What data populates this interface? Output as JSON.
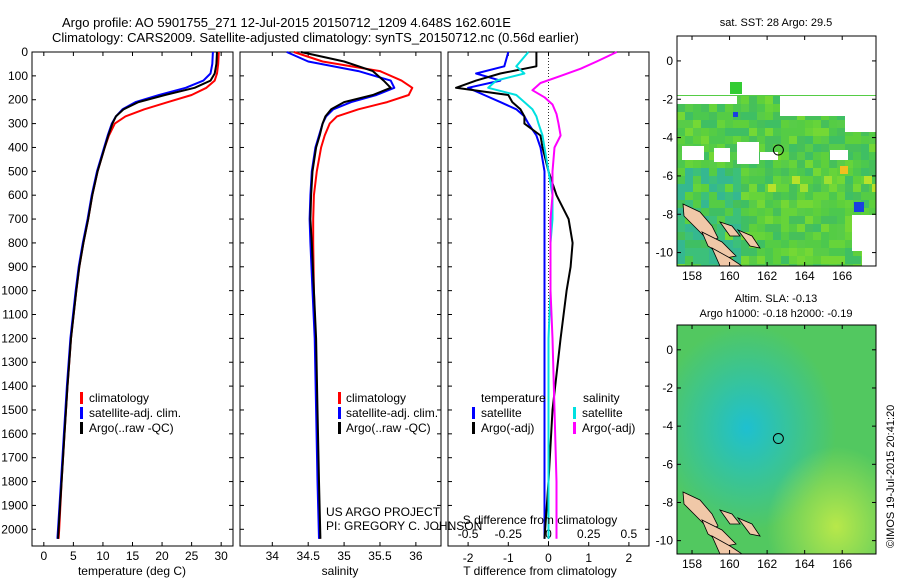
{
  "header": {
    "line1": "Argo profile: AO 5901755_271 12-Jul-2015 20150712_1209 4.648S 162.601E",
    "line2": "Climatology: CARS2009. Satellite-adjusted climatology: synTS_20150712.nc (0.56d earlier)"
  },
  "credit": {
    "line1": "US ARGO PROJECT",
    "line2": "PI: GREGORY C. JOHNSON"
  },
  "timestamp": "©IMOS 19-Jul-2015 20:41:20",
  "chart_data": [
    {
      "id": "temperature",
      "type": "line",
      "xlabel": "temperature (deg C)",
      "ylabel": "",
      "xlim": [
        -2,
        32
      ],
      "ylim": [
        2070,
        0
      ],
      "xticks": [
        0,
        5,
        10,
        15,
        20,
        25,
        30
      ],
      "yticks": [
        0,
        100,
        200,
        300,
        400,
        500,
        600,
        700,
        800,
        900,
        1000,
        1100,
        1200,
        1300,
        1400,
        1500,
        1600,
        1700,
        1800,
        1900,
        2000
      ],
      "legend": [
        "climatology",
        "satellite-adj. clim.",
        "Argo(..raw -QC)"
      ],
      "legend_position": "lower-center",
      "series": [
        {
          "name": "climatology",
          "color": "#ff0000",
          "depth": [
            0,
            50,
            90,
            120,
            150,
            180,
            210,
            240,
            270,
            300,
            350,
            400,
            500,
            600,
            700,
            800,
            900,
            1000,
            1200,
            1400,
            1600,
            1800,
            2000,
            2040
          ],
          "values": [
            29.6,
            29.5,
            29.3,
            28.9,
            27.5,
            25.0,
            21.0,
            17.0,
            13.8,
            12.0,
            11.0,
            10.3,
            9.1,
            8.2,
            7.5,
            6.7,
            6.0,
            5.5,
            4.6,
            4.0,
            3.5,
            3.0,
            2.6,
            2.5
          ]
        },
        {
          "name": "satellite-adj. clim.",
          "color": "#0000ff",
          "depth": [
            0,
            50,
            90,
            120,
            150,
            180,
            210,
            240,
            270,
            300,
            350,
            400,
            500,
            600,
            700,
            800,
            900,
            1000,
            1200,
            1400,
            1600,
            1800,
            2000,
            2040
          ],
          "values": [
            28.6,
            28.5,
            28.2,
            27.0,
            24.0,
            19.5,
            15.5,
            13.3,
            12.2,
            11.5,
            10.8,
            10.2,
            9.0,
            8.1,
            7.4,
            6.6,
            5.9,
            5.4,
            4.5,
            3.9,
            3.4,
            2.9,
            2.4,
            2.3
          ]
        },
        {
          "name": "Argo(..raw -QC)",
          "color": "#000000",
          "depth": [
            0,
            50,
            90,
            120,
            150,
            180,
            210,
            240,
            270,
            300,
            350,
            400,
            500,
            600,
            700,
            800,
            900,
            1000,
            1200,
            1400,
            1600,
            1800,
            2000,
            2040
          ],
          "values": [
            29.3,
            29.2,
            28.9,
            28.2,
            25.5,
            20.5,
            16.0,
            13.5,
            12.2,
            11.6,
            10.9,
            10.3,
            9.1,
            8.2,
            7.5,
            6.7,
            6.0,
            5.5,
            4.6,
            4.0,
            3.5,
            3.0,
            2.5,
            2.4
          ]
        }
      ]
    },
    {
      "id": "salinity",
      "type": "line",
      "xlabel": "salinity",
      "ylabel": "",
      "xlim": [
        33.55,
        36.35
      ],
      "ylim": [
        2070,
        0
      ],
      "xticks": [
        34,
        34.5,
        35,
        35.5,
        36
      ],
      "legend": [
        "climatology",
        "satellite-adj. clim.",
        "Argo(..raw -QC)"
      ],
      "legend_position": "lower-center",
      "series": [
        {
          "name": "climatology",
          "color": "#ff0000",
          "depth": [
            0,
            40,
            80,
            120,
            150,
            180,
            210,
            240,
            270,
            300,
            350,
            400,
            500,
            600,
            700,
            800,
            1000,
            1200,
            1500,
            1800,
            2040
          ],
          "values": [
            34.3,
            34.7,
            35.5,
            35.8,
            35.95,
            35.9,
            35.6,
            35.2,
            34.9,
            34.8,
            34.73,
            34.68,
            34.62,
            34.58,
            34.57,
            34.57,
            34.58,
            34.6,
            34.62,
            34.64,
            34.66
          ]
        },
        {
          "name": "satellite-adj. clim.",
          "color": "#0000ff",
          "depth": [
            0,
            40,
            80,
            120,
            150,
            180,
            210,
            240,
            270,
            300,
            350,
            400,
            500,
            600,
            700,
            800,
            1000,
            1200,
            1500,
            1800,
            2040
          ],
          "values": [
            34.2,
            34.5,
            35.2,
            35.65,
            35.7,
            35.45,
            35.1,
            34.85,
            34.75,
            34.7,
            34.65,
            34.6,
            34.55,
            34.53,
            34.52,
            34.53,
            34.56,
            34.59,
            34.61,
            34.63,
            34.65
          ]
        },
        {
          "name": "Argo(..raw -QC)",
          "color": "#000000",
          "depth": [
            0,
            40,
            80,
            120,
            150,
            180,
            210,
            240,
            270,
            300,
            350,
            400,
            500,
            600,
            700,
            800,
            1000,
            1200,
            1500,
            1800,
            2040
          ],
          "values": [
            34.4,
            35.0,
            35.4,
            35.55,
            35.65,
            35.4,
            35.0,
            34.82,
            34.74,
            34.7,
            34.66,
            34.61,
            34.56,
            34.54,
            34.53,
            34.55,
            34.58,
            34.61,
            34.63,
            34.65,
            34.67
          ]
        }
      ]
    },
    {
      "id": "difference",
      "type": "line",
      "xlabel": "T difference from climatology",
      "xlabel2": "S difference from climatology",
      "ylabel": "",
      "xlim": [
        -2.5,
        2.5
      ],
      "ylim": [
        2070,
        0
      ],
      "xticks": [
        -2,
        -1,
        0,
        1,
        2
      ],
      "xticks2": [
        "-0.5",
        "-0.25",
        "0",
        "0.25",
        "0.5"
      ],
      "legend_headers": [
        "temperature",
        "salinity"
      ],
      "legend": [
        "satellite",
        "Argo(-adj)",
        "satellite",
        "Argo(-adj)"
      ],
      "legend_position": "lower-center",
      "series": [
        {
          "name": "temperature satellite",
          "color": "#0000ff",
          "depth": [
            0,
            60,
            90,
            120,
            150,
            180,
            210,
            240,
            270,
            300,
            350,
            400,
            500,
            600,
            700,
            800,
            1000,
            1200,
            1500,
            1800,
            2040
          ],
          "values": [
            -1.0,
            -1.1,
            -1.8,
            -1.2,
            -2.0,
            -1.6,
            -1.2,
            -0.8,
            -0.6,
            -0.5,
            -0.3,
            -0.2,
            -0.1,
            -0.1,
            -0.1,
            -0.1,
            -0.1,
            -0.1,
            -0.1,
            -0.1,
            -0.1
          ]
        },
        {
          "name": "temperature Argo(-adj)",
          "color": "#000000",
          "depth": [
            0,
            60,
            90,
            120,
            150,
            180,
            210,
            240,
            270,
            300,
            350,
            400,
            500,
            600,
            700,
            800,
            900,
            1000,
            1200,
            1500,
            1800,
            2040
          ],
          "values": [
            -0.3,
            -0.3,
            -1.2,
            -1.8,
            -2.3,
            -1.0,
            -0.9,
            -0.7,
            -0.6,
            -0.6,
            -0.2,
            -0.15,
            0.0,
            0.2,
            0.5,
            0.6,
            0.55,
            0.45,
            0.3,
            0.1,
            0.0,
            -0.1
          ]
        },
        {
          "name": "salinity satellite",
          "color": "#00e0e0",
          "depth": [
            0,
            60,
            90,
            120,
            150,
            180,
            210,
            240,
            270,
            300,
            350,
            400,
            500,
            600,
            700,
            800,
            1000,
            1200,
            1500,
            1800,
            2040
          ],
          "values": [
            -0.5,
            -0.8,
            -0.6,
            -1.3,
            -1.5,
            -0.8,
            -0.6,
            -0.4,
            -0.3,
            -0.25,
            -0.15,
            -0.1,
            0.0,
            0.1,
            0.1,
            0.05,
            0.05,
            0.0,
            0.0,
            0.0,
            0.0
          ]
        },
        {
          "name": "salinity Argo(-adj)",
          "color": "#ff00ff",
          "depth": [
            0,
            40,
            70,
            100,
            130,
            160,
            190,
            220,
            260,
            300,
            350,
            400,
            500,
            600,
            700,
            800,
            1000,
            1200,
            1500,
            1800,
            2040
          ],
          "values": [
            1.7,
            1.2,
            0.8,
            0.3,
            -0.2,
            -0.4,
            -0.1,
            0.1,
            0.2,
            0.25,
            0.3,
            0.15,
            0.1,
            0.1,
            0.05,
            0.05,
            0.05,
            0.1,
            0.15,
            0.2,
            0.2
          ]
        }
      ]
    },
    {
      "id": "sst_map",
      "type": "heatmap",
      "title": "sat. SST: 28 Argo: 29.5",
      "xlim": [
        157.2,
        167.8
      ],
      "ylim": [
        -10.7,
        1.3
      ],
      "xticks": [
        158,
        160,
        162,
        164,
        166
      ],
      "yticks": [
        0,
        -2,
        -4,
        -6,
        -8,
        -10
      ],
      "marker": {
        "lon": 162.6,
        "lat": -4.65
      }
    },
    {
      "id": "sla_map",
      "type": "heatmap",
      "title": "Altim. SLA: -0.13",
      "subtitle": "Argo h1000: -0.18 h2000: -0.19",
      "xlim": [
        157.2,
        167.8
      ],
      "ylim": [
        -10.7,
        1.3
      ],
      "xticks": [
        158,
        160,
        162,
        164,
        166
      ],
      "yticks": [
        0,
        -2,
        -4,
        -6,
        -8,
        -10
      ],
      "marker": {
        "lon": 162.6,
        "lat": -4.65
      }
    }
  ]
}
